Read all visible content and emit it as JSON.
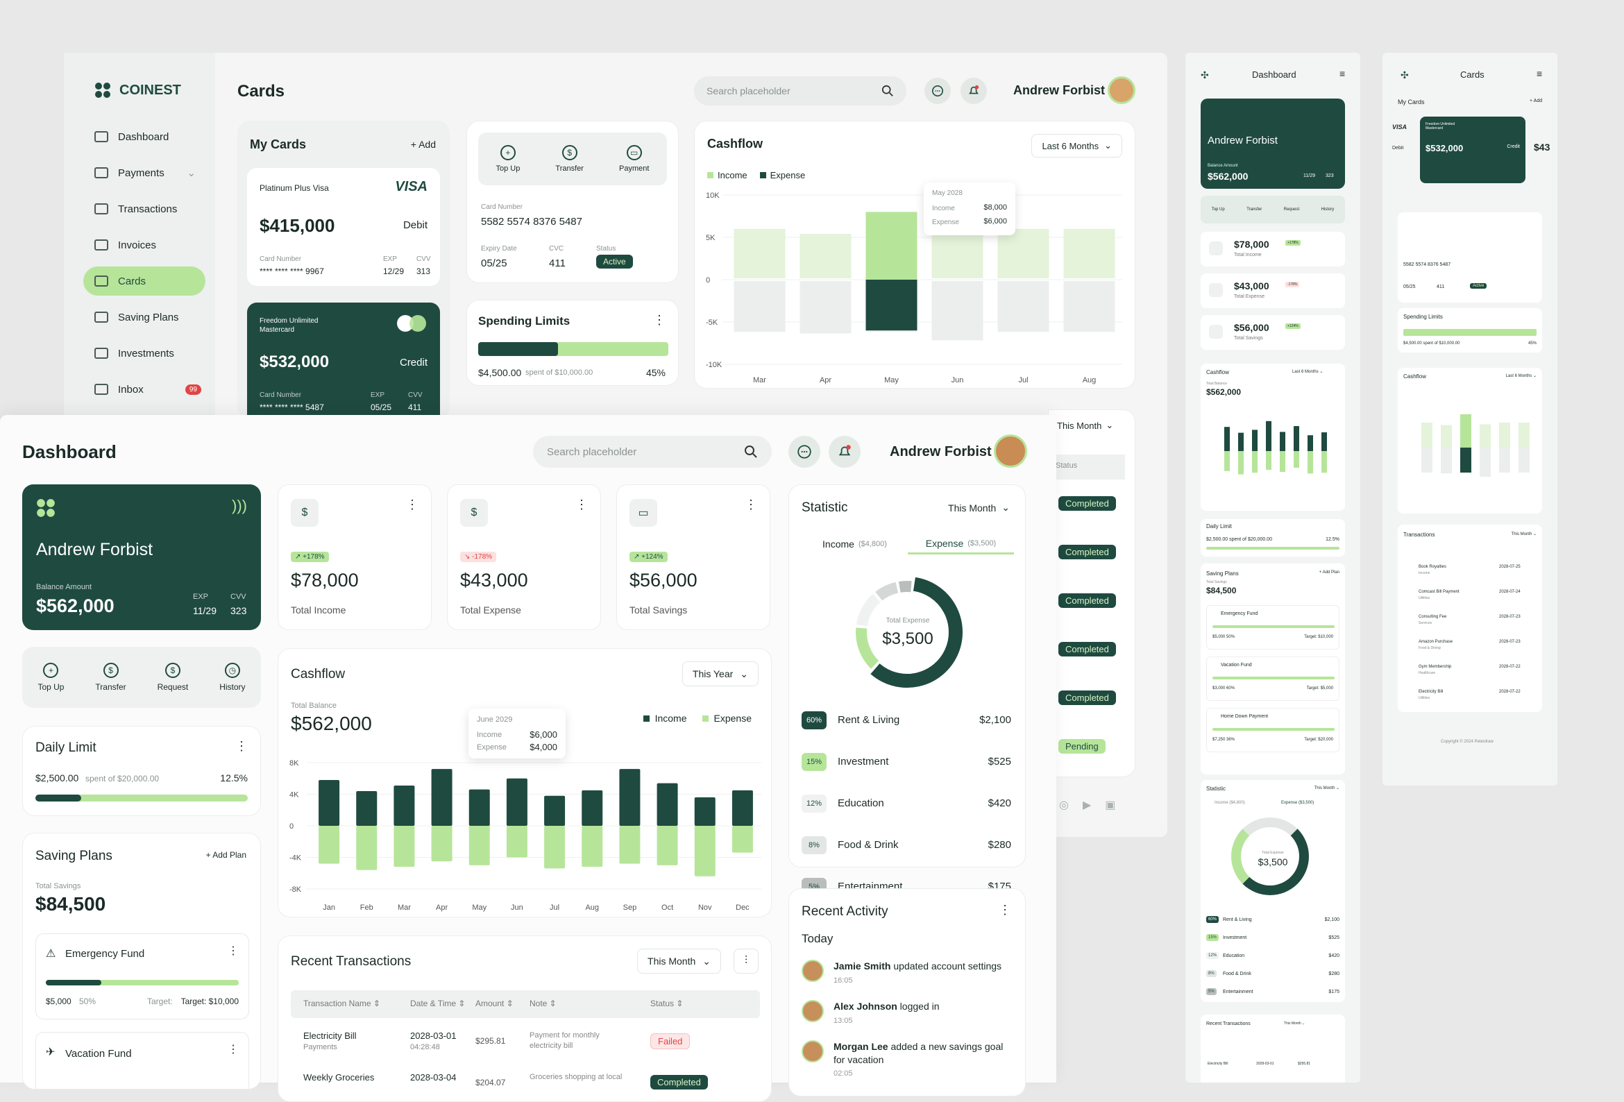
{
  "brand": {
    "name": "COINEST"
  },
  "back": {
    "page_title": "Cards",
    "search_placeholder": "Search placeholder",
    "user": "Andrew Forbist",
    "sidebar": [
      {
        "label": "Dashboard",
        "icon": "grid-icon"
      },
      {
        "label": "Payments",
        "icon": "wallet-icon"
      },
      {
        "label": "Transactions",
        "icon": "arrows-icon"
      },
      {
        "label": "Invoices",
        "icon": "invoice-icon"
      },
      {
        "label": "Cards",
        "icon": "card-icon",
        "active": true
      },
      {
        "label": "Saving Plans",
        "icon": "piggy-icon"
      },
      {
        "label": "Investments",
        "icon": "diamond-icon"
      },
      {
        "label": "Inbox",
        "icon": "mail-icon",
        "badge": "99"
      }
    ],
    "my_cards": {
      "title": "My Cards",
      "add": "+ Add",
      "card1": {
        "type": "Platinum Plus Visa",
        "brand": "VISA",
        "amount": "$415,000",
        "kind": "Debit",
        "number_label": "Card Number",
        "number": "**** **** **** 9967",
        "exp_label": "EXP",
        "exp": "12/29",
        "cvv_label": "CVV",
        "cvv": "313"
      },
      "card2": {
        "type": "Freedom Unlimited Mastercard",
        "amount": "$532,000",
        "kind": "Credit",
        "number_label": "Card Number",
        "number": "**** **** **** 5487",
        "exp_label": "EXP",
        "exp": "05/25",
        "cvv_label": "CVV",
        "cvv": "411"
      }
    },
    "card_detail": {
      "actions": [
        "Top Up",
        "Transfer",
        "Payment"
      ],
      "number_label": "Card Number",
      "number": "5582 5574 8376 5487",
      "expiry_label": "Expiry Date",
      "expiry": "05/25",
      "cvc_label": "CVC",
      "cvc": "411",
      "status_label": "Status",
      "status": "Active"
    },
    "spending": {
      "title": "Spending Limits",
      "amount": "$4,500.00",
      "of": "spent of $10,000.00",
      "pct": "45%",
      "fill": 0.45
    },
    "cashflow": {
      "title": "Cashflow",
      "range": "Last 6 Months",
      "legend": [
        "Income",
        "Expense"
      ],
      "tooltip": {
        "title": "May 2028",
        "income_label": "Income",
        "income": "$8,000",
        "expense_label": "Expense",
        "expense": "$6,000"
      }
    },
    "partial": {
      "range": "This Month",
      "status_head": "Status",
      "statuses": [
        "Completed",
        "Completed",
        "Completed",
        "Completed",
        "Completed",
        "Pending"
      ]
    }
  },
  "front": {
    "title": "Dashboard",
    "search_placeholder": "Search placeholder",
    "user": "Andrew Forbist",
    "card": {
      "name": "Andrew Forbist",
      "balance_label": "Balance Amount",
      "balance": "$562,000",
      "exp_label": "EXP",
      "exp": "11/29",
      "cvv_label": "CVV",
      "cvv": "323"
    },
    "actions": [
      "Top Up",
      "Transfer",
      "Request",
      "History"
    ],
    "stats": [
      {
        "badge": "+178%",
        "value": "$78,000",
        "label": "Total Income",
        "up": true
      },
      {
        "badge": "-178%",
        "value": "$43,000",
        "label": "Total Expense",
        "up": false
      },
      {
        "badge": "+124%",
        "value": "$56,000",
        "label": "Total Savings",
        "up": true
      }
    ],
    "daily": {
      "title": "Daily Limit",
      "amount": "$2,500.00",
      "of": "spent of $20,000.00",
      "pct": "12.5%",
      "fill": 0.125
    },
    "saving": {
      "title": "Saving Plans",
      "add": "+ Add Plan",
      "total_label": "Total Savings",
      "total": "$84,500",
      "plans": [
        {
          "name": "Emergency Fund",
          "amount": "$5,000",
          "pct": "50%",
          "target_label": "Target:",
          "target": "Target: $10,000",
          "fill": 0.5
        },
        {
          "name": "Vacation Fund"
        }
      ]
    },
    "cashflow": {
      "title": "Cashflow",
      "range": "This Year",
      "balance_label": "Total Balance",
      "balance": "$562,000",
      "legend": [
        "Income",
        "Expense"
      ],
      "tooltip": {
        "title": "June 2029",
        "income_label": "Income",
        "income": "$6,000",
        "expense_label": "Expense",
        "expense": "$4,000"
      }
    },
    "statistic": {
      "title": "Statistic",
      "range": "This Month",
      "tab_income": "Income",
      "tab_income_val": "($4,800)",
      "tab_expense": "Expense",
      "tab_expense_val": "($3,500)",
      "center_label": "Total Expense",
      "center": "$3,500",
      "rows": [
        {
          "pct": "60%",
          "name": "Rent & Living",
          "amt": "$2,100"
        },
        {
          "pct": "15%",
          "name": "Investment",
          "amt": "$525"
        },
        {
          "pct": "12%",
          "name": "Education",
          "amt": "$420"
        },
        {
          "pct": "8%",
          "name": "Food & Drink",
          "amt": "$280"
        },
        {
          "pct": "5%",
          "name": "Entertainment",
          "amt": "$175"
        }
      ]
    },
    "transactions": {
      "title": "Recent Transactions",
      "range": "This Month",
      "headers": [
        "Transaction Name",
        "Date & Time",
        "Amount",
        "Note",
        "Status"
      ],
      "rows": [
        {
          "name": "Electricity Bill",
          "cat": "Payments",
          "date": "2028-03-01",
          "time": "04:28:48",
          "amount": "$295.81",
          "note": "Payment for monthly electricity bill",
          "status": "Failed"
        },
        {
          "name": "Weekly Groceries",
          "cat": "",
          "date": "2028-03-04",
          "time": "",
          "amount": "$204.07",
          "note": "Groceries shopping at local",
          "status": "Completed"
        }
      ]
    },
    "activity": {
      "title": "Recent Activity",
      "day": "Today",
      "items": [
        {
          "who": "Jamie Smith",
          "what": " updated account settings",
          "time": "16:05"
        },
        {
          "who": "Alex Johnson",
          "what": " logged in",
          "time": "13:05"
        },
        {
          "who": "Morgan Lee",
          "what": " added a new savings goal for vacation",
          "time": "02:05"
        }
      ]
    }
  },
  "m1": {
    "title": "Dashboard",
    "name": "Andrew Forbist",
    "bal_label": "Balance Amount",
    "bal": "$562,000",
    "exp": "11/29",
    "cvv": "323",
    "actions": [
      "Top Up",
      "Transfer",
      "Request",
      "History"
    ],
    "stats": [
      {
        "v": "$78,000",
        "l": "Total Income",
        "b": "+178%"
      },
      {
        "v": "$43,000",
        "l": "Total Expense",
        "b": "-178%"
      },
      {
        "v": "$56,000",
        "l": "Total Savings",
        "b": "+124%"
      }
    ],
    "cash_title": "Cashflow",
    "cash_range": "Last 6 Months",
    "cash_bal_label": "Total Balance",
    "cash_bal": "$562,000",
    "daily_title": "Daily Limit",
    "daily_amt": "$2,500.00",
    "daily_of": "spent of $20,000.00",
    "daily_pct": "12.5%",
    "saving_title": "Saving Plans",
    "saving_add": "+ Add Plan",
    "saving_total": "$84,500",
    "saving_total_label": "Total Savings",
    "plans": [
      {
        "n": "Emergency Fund",
        "a": "$5,000",
        "p": "50%",
        "t": "Target: $10,000"
      },
      {
        "n": "Vacation Fund",
        "a": "$3,000",
        "p": "60%",
        "t": "Target: $5,000"
      },
      {
        "n": "Home Down Payment",
        "a": "$7,250",
        "p": "36%",
        "t": "Target: $20,000"
      }
    ],
    "stat_title": "Statistic",
    "stat_range": "This Month",
    "stat_income": "Income ($4,800)",
    "stat_expense": "Expense ($3,500)",
    "stat_center_label": "Total Expense",
    "stat_center": "$3,500",
    "rows": [
      {
        "p": "60%",
        "n": "Rent & Living",
        "a": "$2,100"
      },
      {
        "p": "15%",
        "n": "Investment",
        "a": "$525"
      },
      {
        "p": "12%",
        "n": "Education",
        "a": "$420"
      },
      {
        "p": "8%",
        "n": "Food & Drink",
        "a": "$280"
      },
      {
        "p": "5%",
        "n": "Entertainment",
        "a": "$175"
      }
    ],
    "rt_title": "Recent Transactions",
    "rt_range": "This Month",
    "rt_row": {
      "n": "Electricity Bill",
      "c": "Payments",
      "d": "2028-03-01",
      "t": "04:28:48",
      "a": "$295.81",
      "s": "Failed"
    }
  },
  "m2": {
    "title": "Cards",
    "my_cards": "My Cards",
    "add": "+ Add",
    "visa": "VISA",
    "debit": "Debit",
    "card_type": "Freedom Unlimited Mastercard",
    "amount": "$532,000",
    "kind": "Credit",
    "third": "$43",
    "card_number": "5582 5574 8376 5487",
    "exp": "05/25",
    "cvc": "411",
    "status": "Active",
    "spend_title": "Spending Limits",
    "spend_amt": "$4,500.00",
    "spend_of": "spent of $10,000.00",
    "spend_pct": "45%",
    "cash_title": "Cashflow",
    "cash_range": "Last 6 Months",
    "tx_title": "Transactions",
    "tx_range": "This Month",
    "tx": [
      {
        "n": "Book Royalties",
        "c": "Income",
        "d": "2028-07-25"
      },
      {
        "n": "Comcast Bill Payment",
        "c": "Utilities",
        "d": "2028-07-24"
      },
      {
        "n": "Consulting Fee",
        "c": "Services",
        "d": "2028-07-23"
      },
      {
        "n": "Amazon Purchase",
        "c": "Food & Dining",
        "d": "2028-07-23"
      },
      {
        "n": "Gym Membership",
        "c": "Healthcare",
        "d": "2028-07-22"
      },
      {
        "n": "Electricity Bill",
        "c": "Utilities",
        "d": "2028-07-22"
      }
    ],
    "copyright": "Copyright © 2024 Peterdraw"
  },
  "chart_data": [
    {
      "type": "bar",
      "title": "Cashflow",
      "categories": [
        "Jan",
        "Feb",
        "Mar",
        "Apr",
        "May",
        "Jun",
        "Jul",
        "Aug",
        "Sep",
        "Oct",
        "Nov",
        "Dec"
      ],
      "ylim": [
        -8,
        8
      ],
      "yticks": [
        "8K",
        "4K",
        "0",
        "-4K",
        "-8K"
      ],
      "series": [
        {
          "name": "Income",
          "values": [
            5.8,
            4.4,
            5.1,
            7.2,
            4.6,
            6.0,
            3.8,
            4.5,
            7.2,
            5.4,
            3.6,
            4.5
          ]
        },
        {
          "name": "Expense",
          "values": [
            -4.8,
            -5.6,
            -5.2,
            -4.5,
            -5.0,
            -4.0,
            -5.4,
            -5.2,
            -4.8,
            -5.0,
            -6.4,
            -3.4
          ]
        }
      ]
    },
    {
      "type": "bar",
      "title": "Cashflow",
      "categories": [
        "Mar",
        "Apr",
        "May",
        "Jun",
        "Jul",
        "Aug"
      ],
      "ylim": [
        -10,
        10
      ],
      "yticks": [
        "10K",
        "5K",
        "0",
        "-5K",
        "-10K"
      ],
      "series": [
        {
          "name": "Income",
          "values": [
            6.0,
            5.4,
            8.0,
            5.6,
            6.0,
            6.0
          ]
        },
        {
          "name": "Expense",
          "values": [
            -6.0,
            -6.2,
            -6.0,
            -7.0,
            -6.0,
            -6.0
          ]
        }
      ]
    },
    {
      "type": "pie",
      "title": "Statistic",
      "categories": [
        "Rent & Living",
        "Investment",
        "Education",
        "Food & Drink",
        "Entertainment"
      ],
      "values": [
        60,
        15,
        12,
        8,
        5
      ]
    }
  ],
  "colors": {
    "dark": "#1f4a40",
    "light": "#b6e59a",
    "bg": "#f6f7f6"
  }
}
